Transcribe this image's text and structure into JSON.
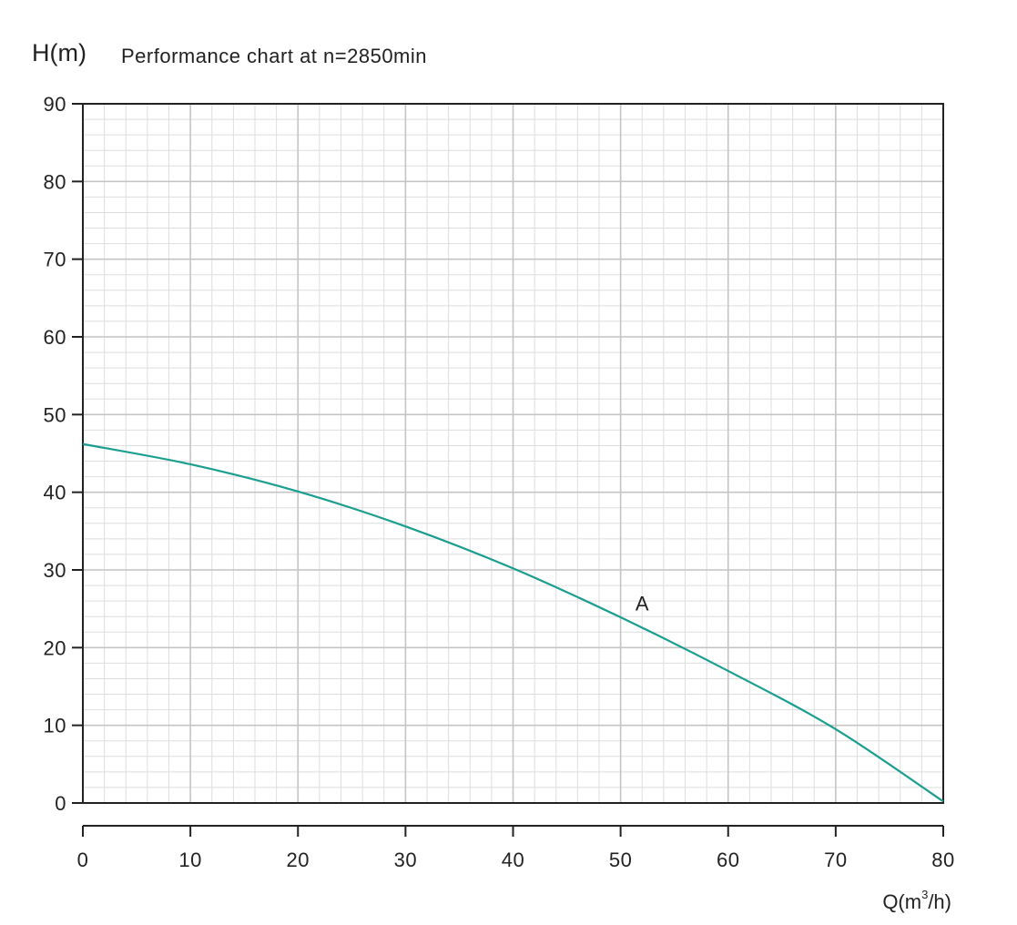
{
  "chart_data": {
    "type": "line",
    "title": "Performance chart at n=2850min",
    "ylabel": "H(m)",
    "xlabel": {
      "prefix": "Q(m",
      "sup": "3",
      "suffix": "/h)"
    },
    "xlim": [
      0,
      80
    ],
    "ylim": [
      0,
      90
    ],
    "x_ticks": [
      0,
      10,
      20,
      30,
      40,
      50,
      60,
      70,
      80
    ],
    "y_ticks": [
      0,
      10,
      20,
      30,
      40,
      50,
      60,
      70,
      80,
      90
    ],
    "x_minor_step": 2,
    "y_minor_step": 2,
    "grid": true,
    "colors": {
      "curve": "#1a9e8f",
      "major_grid": "#c4c4c4",
      "minor_grid": "#dedede",
      "axis": "#222222"
    },
    "series": [
      {
        "annotation": "A",
        "annotation_at": [
          52,
          25
        ],
        "x": [
          0,
          10,
          20,
          30,
          40,
          50,
          60,
          70,
          80
        ],
        "y": [
          46.2,
          43.6,
          40.1,
          35.6,
          30.2,
          23.9,
          17.0,
          9.5,
          0.2
        ]
      }
    ]
  }
}
